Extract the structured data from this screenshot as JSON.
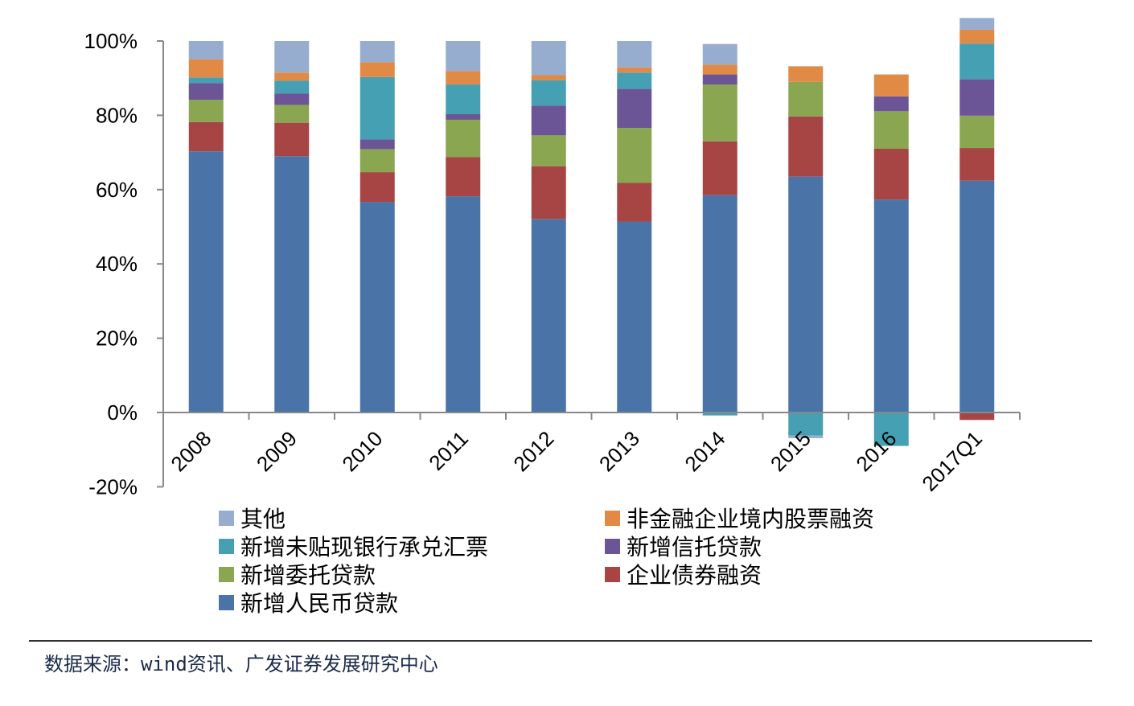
{
  "chart_data": {
    "type": "bar",
    "stacked": true,
    "categories": [
      "2008",
      "2009",
      "2010",
      "2011",
      "2012",
      "2013",
      "2014",
      "2015",
      "2016",
      "2017Q1"
    ],
    "yaxis": {
      "ylim": [
        -20,
        100
      ],
      "ticks": [
        100,
        80,
        60,
        40,
        20,
        0,
        -20
      ],
      "tick_labels": [
        "100%",
        "80%",
        "60%",
        "40%",
        "20%",
        "0%",
        "-20%"
      ]
    },
    "series": [
      {
        "key": "rmb",
        "name": "新增人民币贷款",
        "color": "#4a74a8",
        "values": [
          70.3,
          69.0,
          56.7,
          58.2,
          52.1,
          51.4,
          58.5,
          63.5,
          57.3,
          62.4
        ]
      },
      {
        "key": "bond",
        "name": "企业债券融资",
        "color": "#a74545",
        "values": [
          7.9,
          9.0,
          8.0,
          10.6,
          14.2,
          10.4,
          14.5,
          16.2,
          13.7,
          8.8
        ]
      },
      {
        "key": "wt",
        "name": "新增委托贷款",
        "color": "#8aa650",
        "values": [
          6.0,
          4.8,
          6.2,
          10.0,
          8.3,
          14.8,
          15.3,
          9.3,
          10.1,
          8.7
        ]
      },
      {
        "key": "trust",
        "name": "新增信托贷款",
        "color": "#6c5596",
        "values": [
          4.5,
          3.1,
          2.6,
          1.5,
          8.0,
          10.5,
          2.7,
          0.0,
          4.0,
          9.8
        ]
      },
      {
        "key": "bill",
        "name": "新增未贴现银行承兑汇票",
        "color": "#45a0b4",
        "values": [
          1.5,
          3.4,
          16.8,
          8.0,
          6.8,
          4.4,
          -0.8,
          -6.2,
          -9.0,
          9.6
        ]
      },
      {
        "key": "equity",
        "name": "非金融企业境内股票融资",
        "color": "#e08a45",
        "values": [
          4.9,
          2.2,
          4.0,
          3.6,
          1.4,
          1.4,
          2.6,
          4.2,
          5.9,
          3.8
        ]
      },
      {
        "key": "other",
        "name": "其他",
        "color": "#97adcf",
        "values": [
          4.9,
          8.5,
          5.7,
          8.1,
          9.2,
          7.1,
          5.6,
          -0.7,
          0.0,
          3.1
        ]
      }
    ],
    "extra_negatives": [
      {
        "series": "bond",
        "category": "2017Q1",
        "value": -2.0
      }
    ],
    "legend": {
      "placement": "bottom",
      "order": [
        "other",
        "equity",
        "bill",
        "trust",
        "wt",
        "bond",
        "rmb"
      ]
    },
    "grid": false
  },
  "source": "数据来源：wind资讯、广发证券发展研究中心"
}
